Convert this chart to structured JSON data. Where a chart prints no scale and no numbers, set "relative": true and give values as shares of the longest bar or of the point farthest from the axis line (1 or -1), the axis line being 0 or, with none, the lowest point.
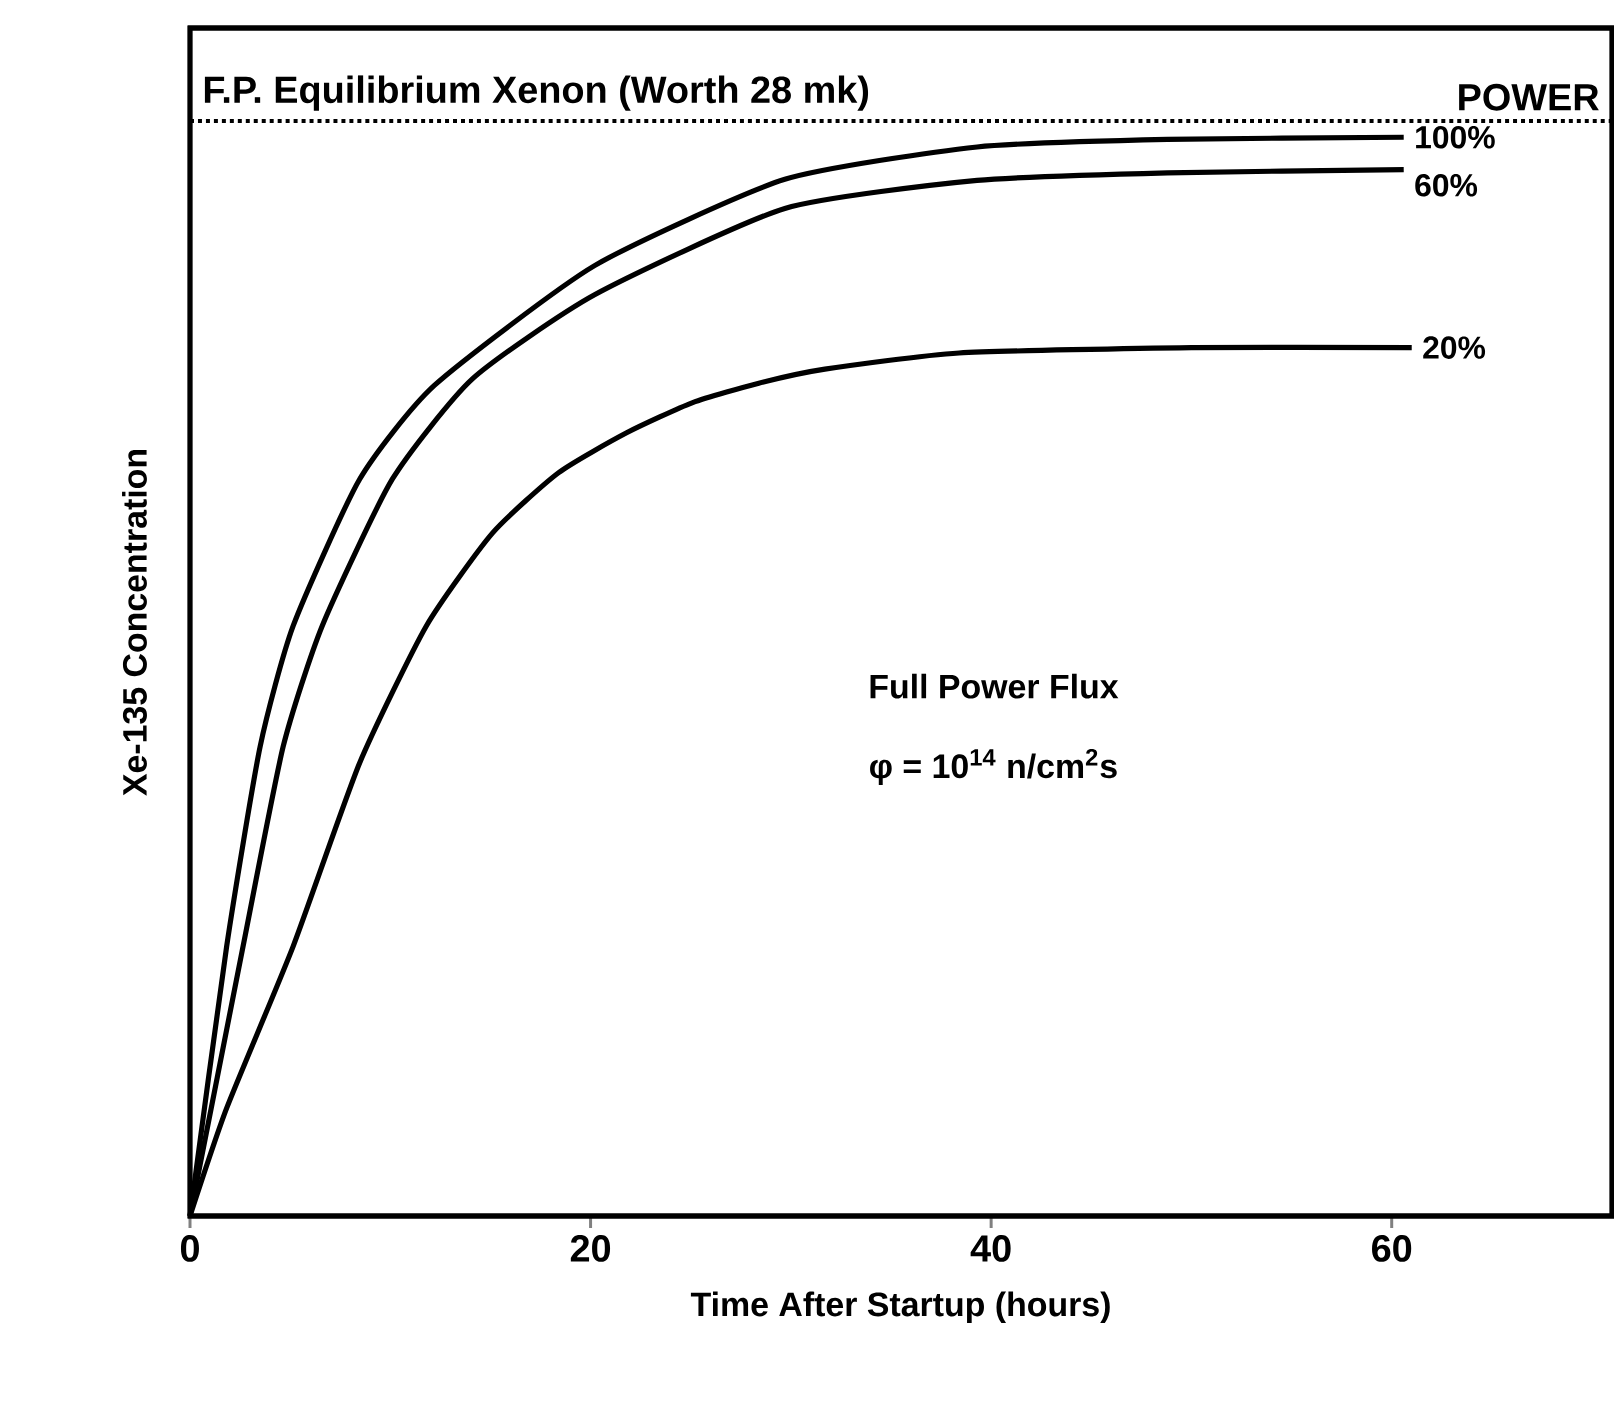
{
  "chart_data": {
    "type": "line",
    "relative": true,
    "xlabel": "Time After Startup (hours)",
    "ylabel": "Xe-135 Concentration",
    "legend_title": "POWER",
    "xlim": [
      0,
      71
    ],
    "xticks": [
      0,
      20,
      40,
      60
    ],
    "x": [
      0,
      1.83,
      3.5,
      5.15,
      8.47,
      12.2,
      20.2,
      29.7,
      39.3,
      48.8,
      60.6
    ],
    "series": [
      {
        "name": "100%",
        "color": "#000000",
        "values": [
          0,
          0.25,
          0.435,
          0.547,
          0.683,
          0.77,
          0.881,
          0.961,
          0.991,
          0.998,
          1.0
        ]
      },
      {
        "name": "60%",
        "color": "#000000",
        "x": [
          0,
          2.65,
          4.65,
          6.6,
          10.1,
          14.1,
          20.2,
          29.7,
          39.3,
          48.8,
          60.6
        ],
        "values": [
          0,
          0.25,
          0.435,
          0.547,
          0.683,
          0.776,
          0.854,
          0.934,
          0.96,
          0.967,
          0.97
        ]
      },
      {
        "name": "20%",
        "color": "#000000",
        "x": [
          0,
          1.83,
          5.15,
          8.47,
          11.8,
          15.1,
          18.4,
          21.8,
          25.1,
          28.4,
          31.7,
          38.4,
          50,
          61
        ],
        "values": [
          0,
          0.1,
          0.25,
          0.42,
          0.547,
          0.633,
          0.689,
          0.726,
          0.754,
          0.772,
          0.785,
          0.8,
          0.805,
          0.805
        ]
      }
    ],
    "ref_lines": [
      {
        "axis": "y",
        "value": 1.015,
        "label": "F.P. Equilibrium Xenon (Worth 28 mk)",
        "line_style": "dotted",
        "color": "#000000"
      }
    ],
    "annotations": [
      "Full Power Flux",
      "φ = 10$^{14}$ n/cm$^{2}$s"
    ]
  }
}
